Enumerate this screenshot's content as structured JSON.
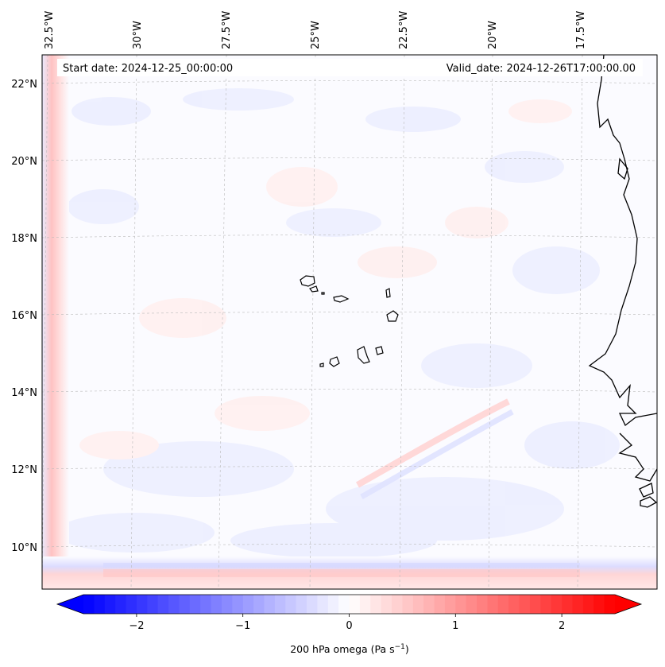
{
  "map": {
    "start_date": "Start date: 2024-12-25_00:00:00",
    "valid_date": "Valid_date: 2024-12-26T17:00:00.00",
    "lon_labels": [
      "32.5°W",
      "30°W",
      "27.5°W",
      "25°W",
      "22.5°W",
      "20°W",
      "17.5°W"
    ],
    "lat_labels": [
      "22°N",
      "20°N",
      "18°N",
      "16°N",
      "14°N",
      "12°N",
      "10°N"
    ],
    "region": "Cape Verde / West African coast",
    "field": "200 hPa omega"
  },
  "colorbar": {
    "title": "200 hPa omega (Pa s",
    "title_exp": "−1",
    "title_close": ")",
    "ticks": [
      "−2",
      "−1",
      "0",
      "1",
      "2"
    ],
    "tick_values": [
      -2,
      -1,
      0,
      1,
      2
    ],
    "range": [
      -2.5,
      2.5
    ],
    "colormap": "bwr",
    "low_color": "#0000ff",
    "mid_color": "#ffffff",
    "high_color": "#ff0000"
  }
}
